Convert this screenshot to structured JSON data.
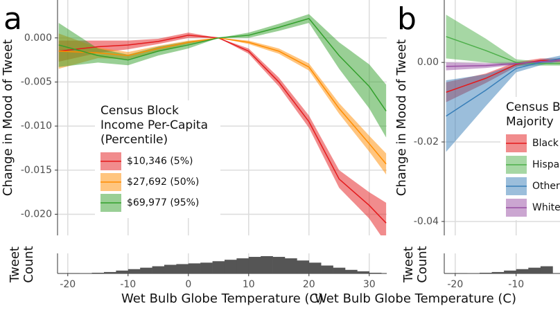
{
  "chart_data": [
    {
      "type": "line",
      "panel_label": "a",
      "ylabel": "Change in Mood of Tweet",
      "xlabel": "Wet Bulb Globe Temperature (C)",
      "legend_title": [
        "Census Block",
        "Income Per-Capita",
        "(Percentile)"
      ],
      "xlim": [
        -21.7,
        32.9
      ],
      "ylim": [
        -0.0224,
        0.0043
      ],
      "xticks": [
        -20,
        -10,
        0,
        10,
        20,
        30
      ],
      "yticks": [
        {
          "value": 0,
          "label": "0.000"
        },
        {
          "value": -0.005,
          "label": "-0.005"
        },
        {
          "value": -0.01,
          "label": "-0.010"
        },
        {
          "value": -0.015,
          "label": "-0.015"
        },
        {
          "value": -0.02,
          "label": "-0.020"
        }
      ],
      "grid": true,
      "x": [
        -21.5,
        -15,
        -10,
        -5,
        0,
        5,
        10,
        15,
        20,
        25,
        30,
        32.8
      ],
      "series": [
        {
          "name": "$10,346 (5%)",
          "color": "#e41a1c",
          "values": [
            -0.0015,
            -0.001,
            -0.0008,
            -0.0004,
            0.0003,
            0,
            -0.0015,
            -0.005,
            -0.0095,
            -0.016,
            -0.019,
            -0.021
          ],
          "upper": [
            -0.0003,
            -0.0003,
            -0.0003,
            -0.0001,
            0.0006,
            0,
            -0.0012,
            -0.0045,
            -0.0088,
            -0.015,
            -0.0175,
            -0.0187
          ],
          "lower": [
            -0.0027,
            -0.0017,
            -0.0013,
            -0.0007,
            0,
            0,
            -0.0018,
            -0.0055,
            -0.0102,
            -0.017,
            -0.0205,
            -0.0233
          ]
        },
        {
          "name": "$27,692 (50%)",
          "color": "#ff8c00",
          "values": [
            -0.0015,
            -0.0017,
            -0.002,
            -0.0012,
            -0.0005,
            0,
            -0.0005,
            -0.0015,
            -0.0033,
            -0.008,
            -0.012,
            -0.0143
          ],
          "upper": [
            0.0005,
            -0.0011,
            -0.0016,
            -0.0009,
            -0.0003,
            0,
            -0.0003,
            -0.0012,
            -0.0029,
            -0.0074,
            -0.0111,
            -0.0131
          ],
          "lower": [
            -0.0035,
            -0.0023,
            -0.0024,
            -0.0015,
            -0.0007,
            0,
            -0.0007,
            -0.0018,
            -0.0037,
            -0.0086,
            -0.0129,
            -0.0155
          ]
        },
        {
          "name": "$69,977 (95%)",
          "color": "#33a02c",
          "values": [
            -0.0008,
            -0.002,
            -0.0025,
            -0.0015,
            -0.0008,
            0,
            0.0003,
            0.0012,
            0.0022,
            -0.002,
            -0.0055,
            -0.0083
          ],
          "upper": [
            0.0017,
            -0.0012,
            -0.0019,
            -0.001,
            -0.0004,
            0,
            0.0006,
            0.0016,
            0.0027,
            -0.0005,
            -0.003,
            -0.0053
          ],
          "lower": [
            -0.0033,
            -0.0028,
            -0.0031,
            -0.002,
            -0.0012,
            0,
            0,
            0.0008,
            0.0017,
            -0.0035,
            -0.008,
            -0.0113
          ]
        }
      ],
      "histogram": {
        "label": [
          "Tweet",
          "Count"
        ],
        "ylim": [
          0,
          24
        ],
        "bins": [
          -22,
          -20,
          -18,
          -16,
          -14,
          -12,
          -10,
          -8,
          -6,
          -4,
          -2,
          0,
          2,
          4,
          6,
          8,
          10,
          12,
          14,
          16,
          18,
          20,
          22,
          24,
          26,
          28,
          30,
          32
        ],
        "counts": [
          0,
          0,
          0.3,
          1,
          2,
          4,
          6,
          8,
          10,
          12,
          13,
          14,
          15,
          17,
          19,
          21,
          23,
          24,
          23,
          21,
          18,
          15,
          11,
          8,
          5,
          3,
          1
        ]
      }
    },
    {
      "type": "line",
      "panel_label": "b",
      "ylabel": "Change in Mood of Tweet",
      "xlabel": "Wet Bulb Globe Temperature (C)",
      "legend_title": [
        "Census Block",
        "Majority"
      ],
      "xlim": [
        -21.8,
        -2.8
      ],
      "ylim": [
        -0.0435,
        0.0157
      ],
      "xticks": [
        -20,
        -10
      ],
      "yticks": [
        {
          "value": 0,
          "label": "0.00"
        },
        {
          "value": -0.02,
          "label": "-0.02"
        },
        {
          "value": -0.04,
          "label": "-0.04"
        }
      ],
      "grid": true,
      "x": [
        -21.5,
        -15,
        -10,
        -6,
        -2.8
      ],
      "series": [
        {
          "name": "Black",
          "color": "#e41a1c",
          "values": [
            -0.0075,
            -0.004,
            -0.0005,
            0.0005,
            0.0005
          ],
          "upper": [
            -0.005,
            -0.0028,
            0.0001,
            0.001,
            0.001
          ],
          "lower": [
            -0.01,
            -0.0052,
            -0.0011,
            0,
            0
          ]
        },
        {
          "name": "Hispanic",
          "color": "#4daf4a",
          "values": [
            0.0065,
            0.003,
            0,
            -0.0003,
            -0.0003
          ],
          "upper": [
            0.012,
            0.006,
            0.0008,
            0.0002,
            0.0002
          ],
          "lower": [
            0.001,
            0,
            -0.0008,
            -0.0008,
            -0.0008
          ]
        },
        {
          "name": "Other",
          "color": "#377eb8",
          "values": [
            -0.0135,
            -0.007,
            -0.0015,
            0,
            0.001
          ],
          "upper": [
            -0.0045,
            -0.003,
            -0.0005,
            0.0007,
            0.0017
          ],
          "lower": [
            -0.0225,
            -0.011,
            -0.0025,
            -0.0007,
            0.0003
          ]
        },
        {
          "name": "White",
          "color": "#984ea3",
          "values": [
            -0.001,
            -0.0008,
            -0.0003,
            0.0002,
            0.0005
          ],
          "upper": [
            0,
            -0.0002,
            0,
            0.0005,
            0.0008
          ],
          "lower": [
            -0.002,
            -0.0014,
            -0.0006,
            -0.0001,
            0.0002
          ]
        }
      ],
      "histogram": {
        "label": [
          "Tweet",
          "Count"
        ],
        "ylim": [
          0,
          24
        ],
        "bins": [
          -22,
          -20,
          -18,
          -16,
          -14,
          -12,
          -10,
          -8,
          -6,
          -4
        ],
        "counts": [
          0,
          0,
          0.3,
          1,
          2,
          4,
          6,
          8,
          10
        ]
      }
    }
  ]
}
